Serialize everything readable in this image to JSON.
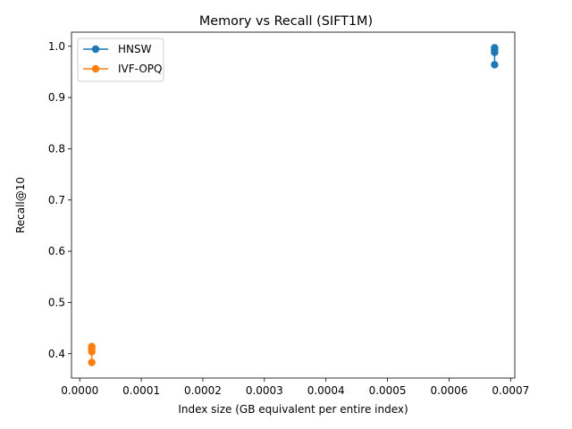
{
  "chart_data": {
    "type": "line",
    "title": "Memory vs Recall (SIFT1M)",
    "xlabel": "Index size (GB equivalent per entire index)",
    "ylabel": "Recall@10",
    "xlim": [
      -1.34e-05,
      0.0007068
    ],
    "ylim": [
      0.3525,
      1.0275
    ],
    "x_ticks": [
      0.0,
      0.0001,
      0.0002,
      0.0003,
      0.0004,
      0.0005,
      0.0006,
      0.0007
    ],
    "x_tick_labels": [
      "0.0000",
      "0.0001",
      "0.0002",
      "0.0003",
      "0.0004",
      "0.0005",
      "0.0006",
      "0.0007"
    ],
    "y_ticks": [
      0.4,
      0.5,
      0.6,
      0.7,
      0.8,
      0.9,
      1.0
    ],
    "y_tick_labels": [
      "0.4",
      "0.5",
      "0.6",
      "0.7",
      "0.8",
      "0.9",
      "1.0"
    ],
    "grid": false,
    "legend": "top-left",
    "series": [
      {
        "name": "HNSW",
        "color": "#1f77b4",
        "x": [
          0.000674,
          0.000674,
          0.000674,
          0.000674
        ],
        "y": [
          0.964,
          0.988,
          0.993,
          0.997
        ]
      },
      {
        "name": "IVF-OPQ",
        "color": "#ff7f0e",
        "x": [
          1.95e-05,
          1.95e-05,
          1.95e-05,
          1.95e-05
        ],
        "y": [
          0.383,
          0.404,
          0.41,
          0.414
        ]
      }
    ]
  }
}
